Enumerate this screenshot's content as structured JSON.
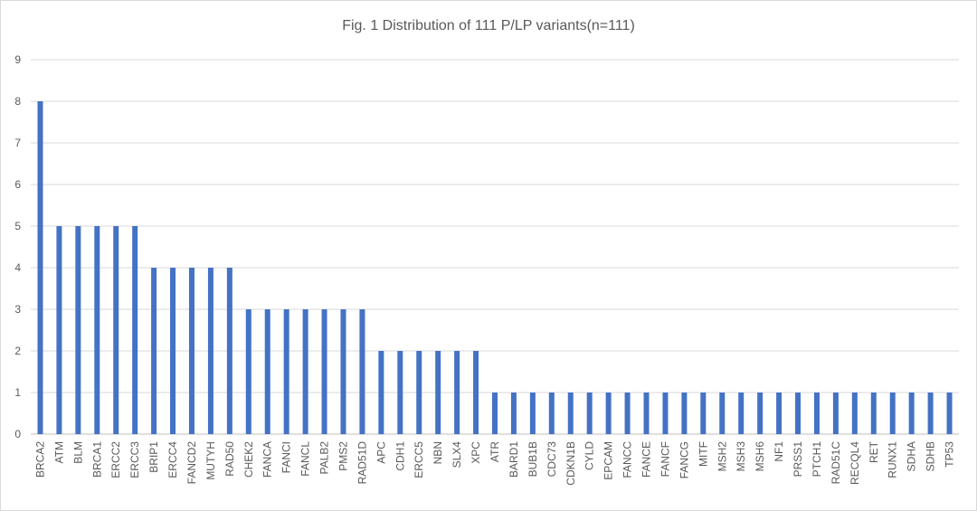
{
  "chart_data": {
    "type": "bar",
    "title": "Fig. 1 Distribution of 111 P/LP variants(n=111)",
    "xlabel": "",
    "ylabel": "",
    "ylim": [
      0,
      9
    ],
    "yticks": [
      0,
      1,
      2,
      3,
      4,
      5,
      6,
      7,
      8,
      9
    ],
    "grid": true,
    "bar_color": "#4472c4",
    "categories": [
      "BRCA2",
      "ATM",
      "BLM",
      "BRCA1",
      "ERCC2",
      "ERCC3",
      "BRIP1",
      "ERCC4",
      "FANCD2",
      "MUTYH",
      "RAD50",
      "CHEK2",
      "FANCA",
      "FANCI",
      "FANCL",
      "PALB2",
      "PMS2",
      "RAD51D",
      "APC",
      "CDH1",
      "ERCC5",
      "NBN",
      "SLX4",
      "XPC",
      "ATR",
      "BARD1",
      "BUB1B",
      "CDC73",
      "CDKN1B",
      "CYLD",
      "EPCAM",
      "FANCC",
      "FANCE",
      "FANCF",
      "FANCG",
      "MITF",
      "MSH2",
      "MSH3",
      "MSH6",
      "NF1",
      "PRSS1",
      "PTCH1",
      "RAD51C",
      "RECQL4",
      "RET",
      "RUNX1",
      "SDHA",
      "SDHB",
      "TP53"
    ],
    "values": [
      8,
      5,
      5,
      5,
      5,
      5,
      4,
      4,
      4,
      4,
      4,
      3,
      3,
      3,
      3,
      3,
      3,
      3,
      2,
      2,
      2,
      2,
      2,
      2,
      1,
      1,
      1,
      1,
      1,
      1,
      1,
      1,
      1,
      1,
      1,
      1,
      1,
      1,
      1,
      1,
      1,
      1,
      1,
      1,
      1,
      1,
      1,
      1,
      1
    ]
  }
}
